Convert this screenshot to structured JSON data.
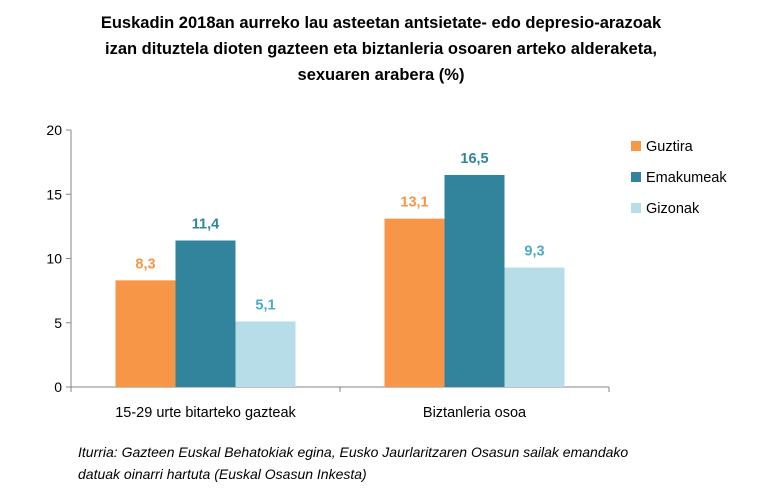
{
  "chart_data": {
    "type": "bar",
    "title": [
      "Euskadin 2018an aurreko lau asteetan antsietate- edo depresio-arazoak",
      "izan dituztela dioten gazteen eta biztanleria osoaren arteko alderaketa,",
      "sexuaren arabera (%)"
    ],
    "categories": [
      "15-29 urte bitarteko gazteak",
      "Biztanleria osoa"
    ],
    "series": [
      {
        "name": "Guztira",
        "values": [
          8.3,
          13.1
        ],
        "labels": [
          "8,3",
          "13,1"
        ],
        "color": "#F79646",
        "label_color": "#F79646"
      },
      {
        "name": "Emakumeak",
        "values": [
          11.4,
          16.5
        ],
        "labels": [
          "11,4",
          "16,5"
        ],
        "color": "#31849B",
        "label_color": "#31849B"
      },
      {
        "name": "Gizonak",
        "values": [
          5.1,
          9.3
        ],
        "labels": [
          "5,1",
          "9,3"
        ],
        "color": "#B7DEE8",
        "label_color": "#4BACC6"
      }
    ],
    "yticks": [
      "0",
      "5",
      "10",
      "15",
      "20"
    ],
    "ylim": [
      0,
      20
    ],
    "xlabel": "",
    "ylabel": "",
    "grid": false,
    "legend_position": "right"
  },
  "source": [
    "Iturria: Gazteen Euskal Behatokiak egina, Eusko Jaurlaritzaren Osasun sailak emandako",
    "datuak oinarri hartuta (Euskal Osasun Inkesta)"
  ]
}
